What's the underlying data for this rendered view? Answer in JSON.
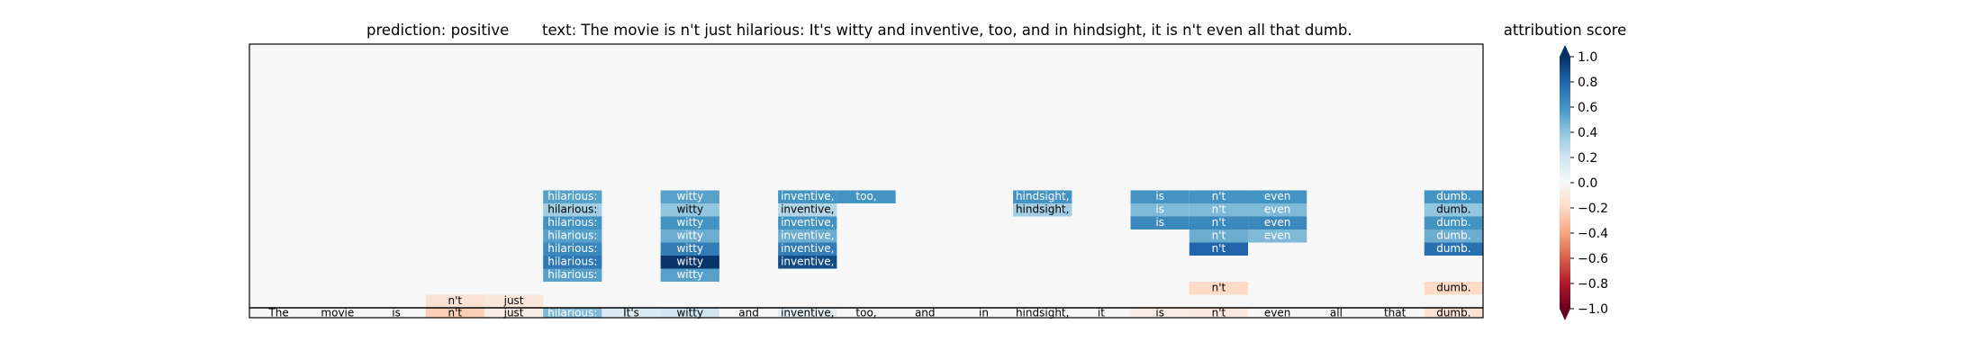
{
  "chart_data": {
    "type": "heatmap",
    "title_prediction": "prediction:  positive",
    "title_text": "text:  The movie is n't just hilarious: It's witty and inventive, too, and in hindsight, it is n't even all that dumb.",
    "colorbar": {
      "label": "attribution score",
      "range": [
        -1.0,
        1.0
      ],
      "ticks": [
        {
          "value": 1.0,
          "label": "1.0"
        },
        {
          "value": 0.8,
          "label": "0.8"
        },
        {
          "value": 0.6,
          "label": "0.6"
        },
        {
          "value": 0.4,
          "label": "0.4"
        },
        {
          "value": 0.2,
          "label": "0.2"
        },
        {
          "value": 0.0,
          "label": "0.0"
        },
        {
          "value": -0.2,
          "label": "−0.2"
        },
        {
          "value": -0.4,
          "label": "−0.4"
        },
        {
          "value": -0.6,
          "label": "−0.6"
        },
        {
          "value": -0.8,
          "label": "−0.8"
        },
        {
          "value": -1.0,
          "label": "−1.0"
        }
      ]
    },
    "tokens": [
      "The",
      "movie",
      "is",
      "n't",
      "just",
      "hilarious:",
      "It's",
      "witty",
      "and",
      "inventive,",
      "too,",
      "and",
      "in",
      "hindsight,",
      "it",
      "is",
      "n't",
      "even",
      "all",
      "that",
      "dumb."
    ],
    "token_scores": [
      0.0,
      0.0,
      0.0,
      -0.25,
      -0.08,
      0.45,
      0.15,
      0.2,
      0.0,
      0.1,
      0.0,
      0.0,
      0.0,
      0.0,
      0.0,
      -0.08,
      -0.1,
      0.0,
      0.0,
      0.0,
      -0.15
    ],
    "cells": [
      {
        "col": 3,
        "level": 1,
        "text": "n't",
        "value": -0.15
      },
      {
        "col": 4,
        "level": 1,
        "text": "just",
        "value": -0.12
      },
      {
        "col": 16,
        "level": 2,
        "text": "n't",
        "value": -0.2
      },
      {
        "col": 20,
        "level": 2,
        "text": "dumb.",
        "value": -0.2
      },
      {
        "col": 5,
        "level": 3,
        "text": "hilarious:",
        "value": 0.55
      },
      {
        "col": 7,
        "level": 3,
        "text": "witty",
        "value": 0.55
      },
      {
        "col": 5,
        "level": 4,
        "text": "hilarious:",
        "value": 0.72
      },
      {
        "col": 7,
        "level": 4,
        "text": "witty",
        "value": 0.98
      },
      {
        "col": 9,
        "level": 4,
        "text": "inventive,",
        "value": 0.9
      },
      {
        "col": 5,
        "level": 5,
        "text": "hilarious:",
        "value": 0.65
      },
      {
        "col": 7,
        "level": 5,
        "text": "witty",
        "value": 0.7
      },
      {
        "col": 9,
        "level": 5,
        "text": "inventive,",
        "value": 0.7
      },
      {
        "col": 16,
        "level": 5,
        "text": "n't",
        "value": 0.8
      },
      {
        "col": 20,
        "level": 5,
        "text": "dumb.",
        "value": 0.75
      },
      {
        "col": 5,
        "level": 6,
        "text": "hilarious:",
        "value": 0.55
      },
      {
        "col": 7,
        "level": 6,
        "text": "witty",
        "value": 0.5
      },
      {
        "col": 9,
        "level": 6,
        "text": "inventive,",
        "value": 0.5
      },
      {
        "col": 16,
        "level": 6,
        "text": "n't",
        "value": 0.5
      },
      {
        "col": 17,
        "level": 6,
        "text": "even",
        "value": 0.45
      },
      {
        "col": 20,
        "level": 6,
        "text": "dumb.",
        "value": 0.5
      },
      {
        "col": 5,
        "level": 7,
        "text": "hilarious:",
        "value": 0.6
      },
      {
        "col": 7,
        "level": 7,
        "text": "witty",
        "value": 0.6
      },
      {
        "col": 9,
        "level": 7,
        "text": "inventive,",
        "value": 0.6
      },
      {
        "col": 15,
        "level": 7,
        "text": "is",
        "value": 0.65
      },
      {
        "col": 16,
        "level": 7,
        "text": "n't",
        "value": 0.65
      },
      {
        "col": 17,
        "level": 7,
        "text": "even",
        "value": 0.65
      },
      {
        "col": 20,
        "level": 7,
        "text": "dumb.",
        "value": 0.6
      },
      {
        "col": 5,
        "level": 8,
        "text": "hilarious:",
        "value": 0.35
      },
      {
        "col": 7,
        "level": 8,
        "text": "witty",
        "value": 0.4
      },
      {
        "col": 9,
        "level": 8,
        "text": "inventive,",
        "value": 0.3
      },
      {
        "col": 13,
        "level": 8,
        "text": "hindsight,",
        "value": 0.35
      },
      {
        "col": 15,
        "level": 8,
        "text": "is",
        "value": 0.45
      },
      {
        "col": 16,
        "level": 8,
        "text": "n't",
        "value": 0.45
      },
      {
        "col": 17,
        "level": 8,
        "text": "even",
        "value": 0.45
      },
      {
        "col": 20,
        "level": 8,
        "text": "dumb.",
        "value": 0.4
      },
      {
        "col": 5,
        "level": 9,
        "text": "hilarious:",
        "value": 0.55
      },
      {
        "col": 7,
        "level": 9,
        "text": "witty",
        "value": 0.55
      },
      {
        "col": 9,
        "level": 9,
        "text": "inventive,",
        "value": 0.6
      },
      {
        "col": 10,
        "level": 9,
        "text": "too,",
        "value": 0.6
      },
      {
        "col": 13,
        "level": 9,
        "text": "hindsight,",
        "value": 0.6
      },
      {
        "col": 15,
        "level": 9,
        "text": "is",
        "value": 0.6
      },
      {
        "col": 16,
        "level": 9,
        "text": "n't",
        "value": 0.6
      },
      {
        "col": 17,
        "level": 9,
        "text": "even",
        "value": 0.6
      },
      {
        "col": 20,
        "level": 9,
        "text": "dumb.",
        "value": 0.6
      }
    ]
  }
}
